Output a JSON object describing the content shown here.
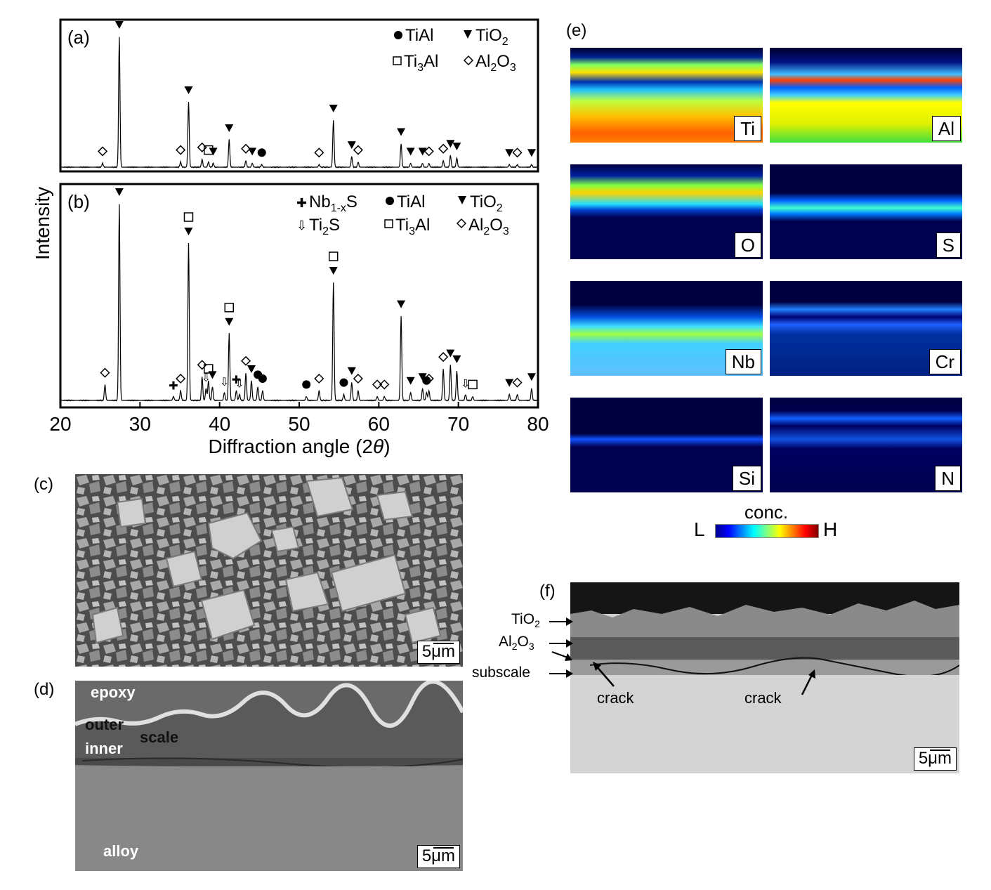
{
  "xrd": {
    "y_axis_label": "Intensity",
    "x_axis_label": "Diffraction angle (2θ)",
    "x_ticks": [
      "20",
      "30",
      "40",
      "50",
      "60",
      "70",
      "80"
    ],
    "panel_a": {
      "label": "(a)",
      "legend": [
        "TiAl",
        "TiO2",
        "Ti3Al",
        "Al2O3"
      ]
    },
    "panel_b": {
      "label": "(b)",
      "legend": [
        "Nb1-xS",
        "TiAl",
        "TiO2",
        "Ti2S",
        "Ti3Al",
        "Al2O3"
      ]
    }
  },
  "chart_data": [
    {
      "type": "line",
      "title": "(a)",
      "xlabel": "Diffraction angle (2θ)",
      "ylabel": "Intensity",
      "xlim": [
        20,
        80
      ],
      "peaks": [
        {
          "x": 25.3,
          "y": 3,
          "phase": "Al2O3"
        },
        {
          "x": 27.4,
          "y": 100,
          "phase": "TiO2"
        },
        {
          "x": 35.1,
          "y": 4,
          "phase": "Al2O3"
        },
        {
          "x": 36.1,
          "y": 50,
          "phase": "TiO2"
        },
        {
          "x": 37.8,
          "y": 6,
          "phase": "Al2O3"
        },
        {
          "x": 38.6,
          "y": 4,
          "phase": "Ti3Al"
        },
        {
          "x": 39.2,
          "y": 3,
          "phase": "TiO2"
        },
        {
          "x": 41.2,
          "y": 21,
          "phase": "TiO2"
        },
        {
          "x": 43.3,
          "y": 5,
          "phase": "Al2O3"
        },
        {
          "x": 44.1,
          "y": 3,
          "phase": "TiO2"
        },
        {
          "x": 45.3,
          "y": 2,
          "phase": "TiAl"
        },
        {
          "x": 52.5,
          "y": 2,
          "phase": "Al2O3"
        },
        {
          "x": 54.3,
          "y": 36,
          "phase": "TiO2"
        },
        {
          "x": 56.6,
          "y": 8,
          "phase": "TiO2"
        },
        {
          "x": 57.4,
          "y": 4,
          "phase": "Al2O3"
        },
        {
          "x": 62.8,
          "y": 18,
          "phase": "TiO2"
        },
        {
          "x": 64.0,
          "y": 3,
          "phase": "TiO2"
        },
        {
          "x": 65.5,
          "y": 3,
          "phase": "TiO2"
        },
        {
          "x": 66.3,
          "y": 3,
          "phase": "Al2O3"
        },
        {
          "x": 68.1,
          "y": 5,
          "phase": "Al2O3"
        },
        {
          "x": 69.0,
          "y": 9,
          "phase": "TiO2"
        },
        {
          "x": 69.8,
          "y": 7,
          "phase": "TiO2"
        },
        {
          "x": 76.4,
          "y": 2,
          "phase": "TiO2"
        },
        {
          "x": 77.4,
          "y": 2,
          "phase": "Al2O3"
        },
        {
          "x": 79.2,
          "y": 2,
          "phase": "TiO2"
        }
      ]
    },
    {
      "type": "line",
      "title": "(b)",
      "xlabel": "Diffraction angle (2θ)",
      "ylabel": "Intensity",
      "xlim": [
        20,
        80
      ],
      "peaks": [
        {
          "x": 25.6,
          "y": 8,
          "phase": "Al2O3"
        },
        {
          "x": 27.4,
          "y": 100,
          "phase": "TiO2"
        },
        {
          "x": 34.2,
          "y": 2,
          "phase": "Nb1-xS"
        },
        {
          "x": 35.1,
          "y": 5,
          "phase": "Al2O3"
        },
        {
          "x": 36.1,
          "y": 80,
          "phase": "TiO2/Ti3Al"
        },
        {
          "x": 37.8,
          "y": 12,
          "phase": "Al2O3"
        },
        {
          "x": 38.3,
          "y": 6,
          "phase": "Ti2S"
        },
        {
          "x": 38.6,
          "y": 10,
          "phase": "Ti3Al"
        },
        {
          "x": 39.1,
          "y": 7,
          "phase": "TiO2"
        },
        {
          "x": 40.6,
          "y": 4,
          "phase": "Ti2S"
        },
        {
          "x": 41.2,
          "y": 34,
          "phase": "TiO2/Ti3Al"
        },
        {
          "x": 42.1,
          "y": 5,
          "phase": "Nb1-xS"
        },
        {
          "x": 42.5,
          "y": 3,
          "phase": "Ti2S"
        },
        {
          "x": 43.3,
          "y": 14,
          "phase": "Al2O3"
        },
        {
          "x": 44.0,
          "y": 10,
          "phase": "TiO2"
        },
        {
          "x": 44.8,
          "y": 7,
          "phase": "TiAl"
        },
        {
          "x": 45.4,
          "y": 5,
          "phase": "TiAl"
        },
        {
          "x": 50.9,
          "y": 2,
          "phase": "TiAl"
        },
        {
          "x": 52.5,
          "y": 5,
          "phase": "Al2O3"
        },
        {
          "x": 54.3,
          "y": 60,
          "phase": "TiO2/Ti3Al"
        },
        {
          "x": 55.6,
          "y": 3,
          "phase": "TiAl"
        },
        {
          "x": 56.6,
          "y": 9,
          "phase": "TiO2"
        },
        {
          "x": 57.4,
          "y": 5,
          "phase": "Al2O3"
        },
        {
          "x": 59.8,
          "y": 2,
          "phase": "Al2O3"
        },
        {
          "x": 60.7,
          "y": 2,
          "phase": "Al2O3"
        },
        {
          "x": 62.8,
          "y": 43,
          "phase": "TiO2"
        },
        {
          "x": 64.0,
          "y": 4,
          "phase": "TiO2"
        },
        {
          "x": 65.5,
          "y": 6,
          "phase": "TiO2"
        },
        {
          "x": 66.0,
          "y": 4,
          "phase": "TiAl"
        },
        {
          "x": 66.3,
          "y": 5,
          "phase": "Al2O3"
        },
        {
          "x": 68.1,
          "y": 16,
          "phase": "Al2O3"
        },
        {
          "x": 69.0,
          "y": 18,
          "phase": "TiO2"
        },
        {
          "x": 69.8,
          "y": 15,
          "phase": "TiO2"
        },
        {
          "x": 70.9,
          "y": 3,
          "phase": "Ti2S"
        },
        {
          "x": 71.8,
          "y": 2,
          "phase": "Ti3Al"
        },
        {
          "x": 76.4,
          "y": 3,
          "phase": "TiO2"
        },
        {
          "x": 77.4,
          "y": 3,
          "phase": "Al2O3"
        },
        {
          "x": 79.2,
          "y": 6,
          "phase": "TiO2"
        }
      ]
    }
  ],
  "panel_c": {
    "label": "(c)",
    "scale": "5μm"
  },
  "panel_d": {
    "label": "(d)",
    "scale": "5μm",
    "labels": {
      "epoxy": "epoxy",
      "outer": "outer",
      "scale": "scale",
      "inner": "inner",
      "alloy": "alloy"
    }
  },
  "panel_e": {
    "label": "(e)",
    "maps": [
      "Ti",
      "Al",
      "O",
      "S",
      "Nb",
      "Cr",
      "Si",
      "N"
    ],
    "colorbar_title": "conc.",
    "low": "L",
    "high": "H"
  },
  "panel_f": {
    "label": "(f)",
    "scale": "5μm",
    "layer_labels": [
      "TiO2",
      "Al2O3",
      "subscale"
    ],
    "crack": "crack"
  },
  "colors": {
    "jet": [
      "#00008f",
      "#0000ff",
      "#0080ff",
      "#00ffff",
      "#80ff80",
      "#ffff00",
      "#ff8000",
      "#ff0000",
      "#800000"
    ]
  }
}
